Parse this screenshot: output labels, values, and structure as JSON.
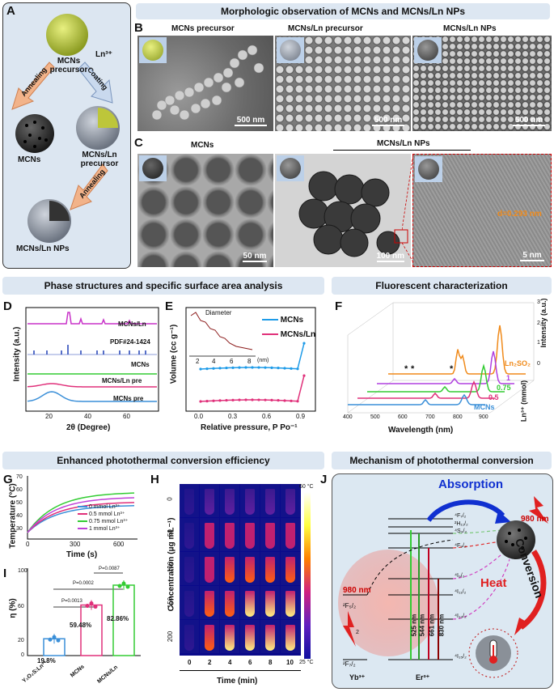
{
  "panel_labels": [
    "A",
    "B",
    "C",
    "D",
    "E",
    "F",
    "G",
    "H",
    "I",
    "J"
  ],
  "headers": {
    "morph": "Morphologic observation of MCNs and MCNs/Ln NPs",
    "phase": "Phase structures and specific surface area analysis",
    "fluor": "Fluorescent characterization",
    "photo": "Enhanced photothermal conversion efficiency",
    "mech": "Mechanism of photothermal conversion"
  },
  "panel_a": {
    "precursor": "MCNs precursor",
    "ln": "Ln³⁺",
    "coating": "Coating",
    "annealing1": "Annealing",
    "annealing2": "Annealing",
    "mcns": "MCNs",
    "mcns_ln_pre": "MCNs/Ln precursor",
    "mcns_ln_nps": "MCNs/Ln NPs"
  },
  "panel_b": {
    "titles": [
      "MCNs precursor",
      "MCNs/Ln precursor",
      "MCNs/Ln NPs"
    ],
    "scale": [
      "500 nm",
      "500 nm",
      "500 nm"
    ]
  },
  "panel_c": {
    "title_left": "MCNs",
    "title_right": "MCNs/Ln NPs",
    "scale": [
      "50 nm",
      "100 nm",
      "5 nm"
    ],
    "d_spacing": "d=0.293 nm"
  },
  "panel_d": {
    "ylabel": "Intensity (a.u.)",
    "xlabel": "2θ (Degree)",
    "ticks": [
      "20",
      "40",
      "60"
    ],
    "labels": [
      "MCNs/Ln",
      "PDF#24-1424",
      "MCNs",
      "MCNs/Ln pre",
      "MCNs pre"
    ],
    "colors": [
      "#c832c8",
      "#1f3fb5",
      "#33cc33",
      "#e0307a",
      "#3a8fd8"
    ]
  },
  "panel_e": {
    "ylabel": "Volume (cc g⁻¹)",
    "xlabel": "Relative pressure, P Po⁻¹",
    "xticks": [
      "0.0",
      "0.3",
      "0.6",
      "0.9"
    ],
    "legend": [
      "MCNs",
      "MCNs/Ln"
    ],
    "inset_title": "Diameter",
    "inset_ticks": [
      "2",
      "4",
      "6",
      "8"
    ],
    "inset_unit": "(nm)",
    "colors": [
      "#1e9be8",
      "#e0307a"
    ]
  },
  "panel_f": {
    "xlabel": "Wavelength (nm)",
    "xticks": [
      "400",
      "500",
      "600",
      "700",
      "800",
      "900"
    ],
    "zlabel": "Intensity (a.u.)",
    "zticks": [
      "0",
      "1",
      "2",
      "3"
    ],
    "series": [
      "Ln₂SO₂",
      "1",
      "0.75",
      "0.5",
      "MCNs"
    ],
    "series_colors": [
      "#f08a1a",
      "#b040e0",
      "#33cc33",
      "#e0307a",
      "#3a8fd8"
    ],
    "unit": "Ln³⁺ (mmol)",
    "star": "*"
  },
  "panel_g": {
    "ylabel": "Temperature (°C)",
    "xlabel": "Time (s)",
    "xticks": [
      "0",
      "300",
      "600"
    ],
    "yticks": [
      "30",
      "40",
      "50",
      "60",
      "70"
    ],
    "legend": [
      "0 mmol Ln³⁺",
      "0.5 mmol Ln³⁺",
      "0.75 mmol Ln³⁺",
      "1 mmol Ln³⁺"
    ],
    "colors": [
      "#3a8fd8",
      "#e0307a",
      "#33cc33",
      "#c040d8"
    ]
  },
  "panel_h": {
    "ylabel": "Concentration (μg mL⁻¹)",
    "xlabel": "Time (min)",
    "rows": [
      "0",
      "50",
      "100",
      "150",
      "200"
    ],
    "cols": [
      "0",
      "2",
      "4",
      "6",
      "8",
      "10"
    ],
    "cbar_top": "60 °C",
    "cbar_bottom": "25 °C"
  },
  "panel_i": {
    "ylabel": "η (%)",
    "yticks": [
      "0",
      "20",
      "40",
      "60",
      "80",
      "100"
    ],
    "categories": [
      "Y₂O₂S:Ln³⁺",
      "MCNs",
      "MCNs/Ln"
    ],
    "values": [
      "19.8%",
      "59.48%",
      "82.86%"
    ],
    "p1": "P=0.0013",
    "p2": "P=0.0002",
    "p3": "P=0.0087",
    "colors": [
      "#3a8fd8",
      "#e0307a",
      "#33cc33"
    ]
  },
  "panel_j": {
    "absorption": "Absorption",
    "conversion": "Conversion",
    "heat": "Heat",
    "laser1": "980 nm",
    "laser2": "980 nm",
    "yb": "Yb³⁺",
    "er": "Er³⁺",
    "f52": "²F₅/₂",
    "f72": "²F₇/₂",
    "levels": [
      "⁴F₇/₂",
      "²H₁₁/₂",
      "⁴S₃/₂",
      "⁴F₉/₂",
      "⁴I₉/₂",
      "⁴I₁₁/₂",
      "⁴I₁₃/₂",
      "⁴I₁₅/₂"
    ],
    "emissions": [
      "525 nm",
      "544 nm",
      "661 nm",
      "830 nm"
    ],
    "num2": "2"
  }
}
